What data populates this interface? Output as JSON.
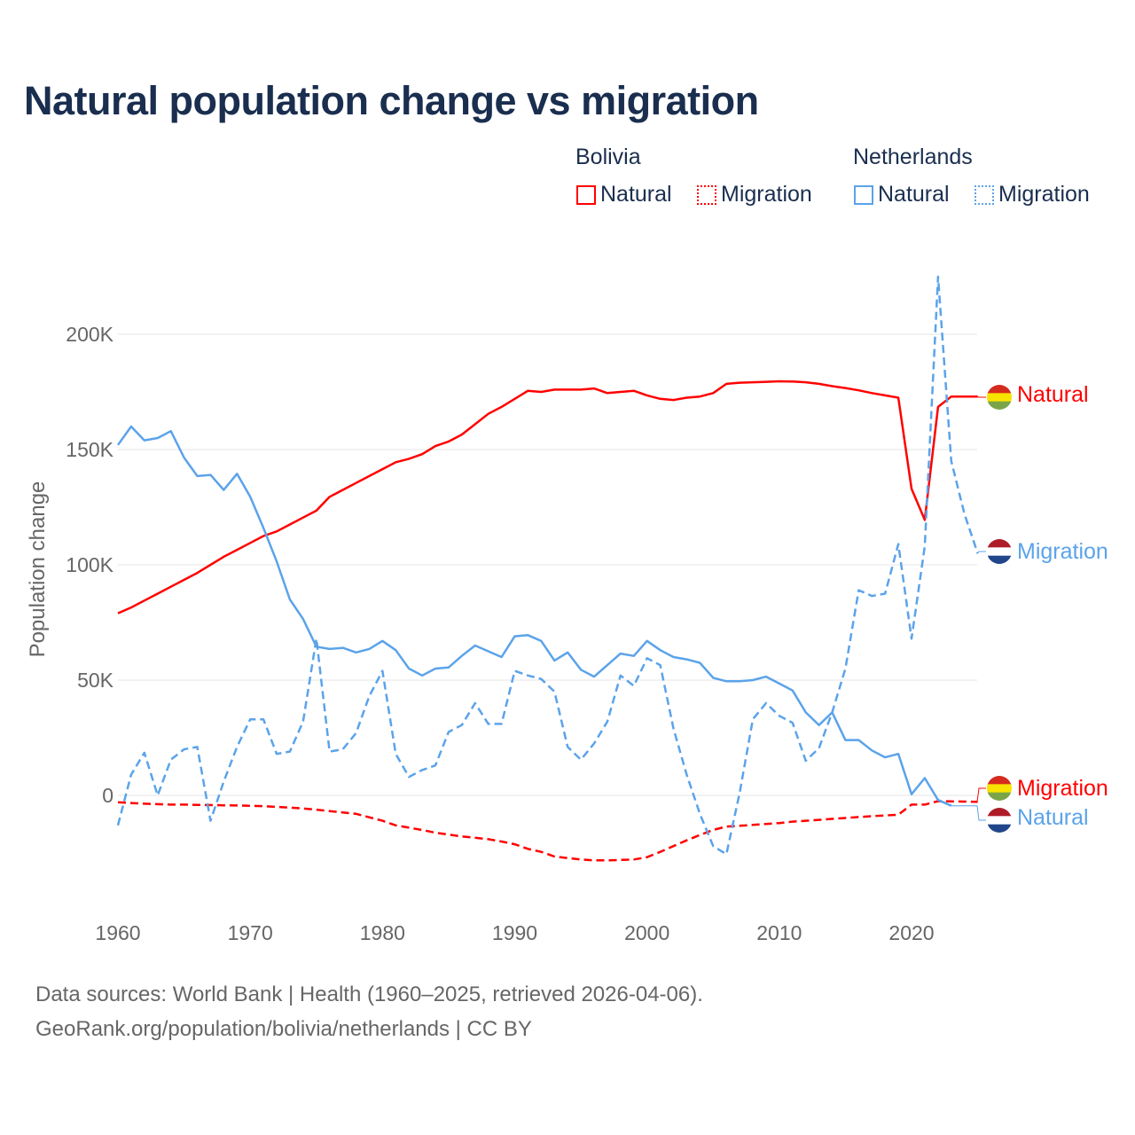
{
  "chart_data": {
    "type": "line",
    "title": "Natural population change vs migration",
    "xlabel": "",
    "ylabel": "Population change",
    "xlim": [
      1960,
      2025
    ],
    "ylim": [
      -40000,
      225000
    ],
    "y_ticks": [
      0,
      50000,
      100000,
      150000,
      200000
    ],
    "y_tick_labels": [
      "0",
      "50K",
      "100K",
      "150K",
      "200K"
    ],
    "x_ticks": [
      1960,
      1970,
      1980,
      1990,
      2000,
      2010,
      2020
    ],
    "x_tick_labels": [
      "1960",
      "1970",
      "1980",
      "1990",
      "2000",
      "2010",
      "2020"
    ],
    "grid": true,
    "legend_placement": "top-right",
    "x_start": 1960,
    "series": [
      {
        "country": "Bolivia",
        "name": "Natural",
        "color": "#ff0000",
        "dash": "solid",
        "end_label": "Natural",
        "values": [
          79,
          81.5,
          84.5,
          87.5,
          90.5,
          93.5,
          96.5,
          100,
          103.5,
          106.5,
          109.5,
          112.5,
          114.5,
          117.5,
          120.5,
          123.5,
          129.5,
          132.5,
          135.5,
          138.5,
          141.5,
          144.5,
          146,
          148,
          151.5,
          153.5,
          156.5,
          161,
          165.5,
          168.5,
          172,
          175.5,
          175,
          176,
          176,
          176,
          176.5,
          174.5,
          175,
          175.5,
          173.5,
          172,
          171.5,
          172.5,
          173,
          174.5,
          178.5,
          179,
          179.2,
          179.4,
          179.6,
          179.5,
          179.2,
          178.5,
          177.5,
          176.7,
          175.7,
          174.5,
          173.5,
          172.5,
          133,
          119.5,
          168.5,
          173,
          173,
          173
        ]
      },
      {
        "country": "Bolivia",
        "name": "Migration",
        "color": "#ff0000",
        "dash": "dashed",
        "end_label": "Migration",
        "values": [
          -3,
          -3.3,
          -3.6,
          -3.8,
          -4,
          -4,
          -4.1,
          -4.2,
          -4.3,
          -4.4,
          -4.5,
          -4.7,
          -5,
          -5.3,
          -5.7,
          -6.2,
          -6.8,
          -7.4,
          -8,
          -9.5,
          -11,
          -13,
          -14,
          -15,
          -16.2,
          -17,
          -17.8,
          -18.4,
          -19,
          -20,
          -21.2,
          -23.2,
          -24.5,
          -26.5,
          -27.2,
          -27.8,
          -28.2,
          -28.2,
          -28,
          -27.8,
          -26.8,
          -24.5,
          -22,
          -19.5,
          -17.2,
          -15,
          -13.5,
          -13.2,
          -12.8,
          -12.4,
          -12,
          -11.4,
          -11,
          -10.6,
          -10.2,
          -9.8,
          -9.4,
          -9,
          -8.7,
          -8.4,
          -4,
          -4,
          -2.5,
          -2.6,
          -2.7,
          -2.8
        ]
      },
      {
        "country": "Netherlands",
        "name": "Natural",
        "color": "#5ba3ea",
        "dash": "solid",
        "end_label": "Natural",
        "values": [
          152,
          160,
          154,
          155,
          158,
          146.5,
          138.5,
          139,
          132.5,
          139.5,
          129.5,
          116,
          101.5,
          85,
          76.5,
          64.5,
          63.5,
          64,
          62,
          63.5,
          67,
          63,
          55,
          52,
          55,
          55.5,
          60.5,
          65,
          62.5,
          60,
          69,
          69.5,
          67,
          58.5,
          62,
          54.5,
          51.5,
          56.5,
          61.5,
          60.5,
          67,
          63,
          60,
          59,
          57.5,
          51,
          49.5,
          49.5,
          50,
          51.5,
          48.5,
          45.5,
          36,
          30.5,
          36,
          24,
          24,
          19.5,
          16.5,
          18,
          0.5,
          7.5,
          -2,
          -4.5
        ]
      },
      {
        "country": "Netherlands",
        "name": "Migration",
        "color": "#5ba3ea",
        "dash": "dashed",
        "end_label": "Migration",
        "values": [
          -13,
          9,
          18.5,
          0,
          15.5,
          20,
          21,
          -11,
          6,
          21,
          33,
          33,
          18,
          19,
          32,
          68,
          19,
          20,
          27,
          43,
          54,
          18,
          8,
          11,
          13,
          27.5,
          30.5,
          40,
          31,
          31,
          54,
          52,
          50.5,
          45,
          21,
          15.5,
          22.5,
          32,
          52,
          47.5,
          59.5,
          56.5,
          29,
          9,
          -8,
          -22,
          -25.5,
          1,
          33,
          40,
          34.5,
          31.5,
          15,
          20.5,
          36,
          55,
          89,
          86.5,
          87.5,
          109,
          68,
          108,
          225,
          145,
          122,
          105
        ]
      }
    ],
    "value_unit": "thousands"
  },
  "legend": {
    "bolivia": "Bolivia",
    "netherlands": "Netherlands",
    "natural": "Natural",
    "migration": "Migration"
  },
  "footer": {
    "line1": "Data sources: World Bank | Health (1960–2025, retrieved 2026-04-06).",
    "line2": "GeoRank.org/population/bolivia/netherlands | CC BY"
  }
}
